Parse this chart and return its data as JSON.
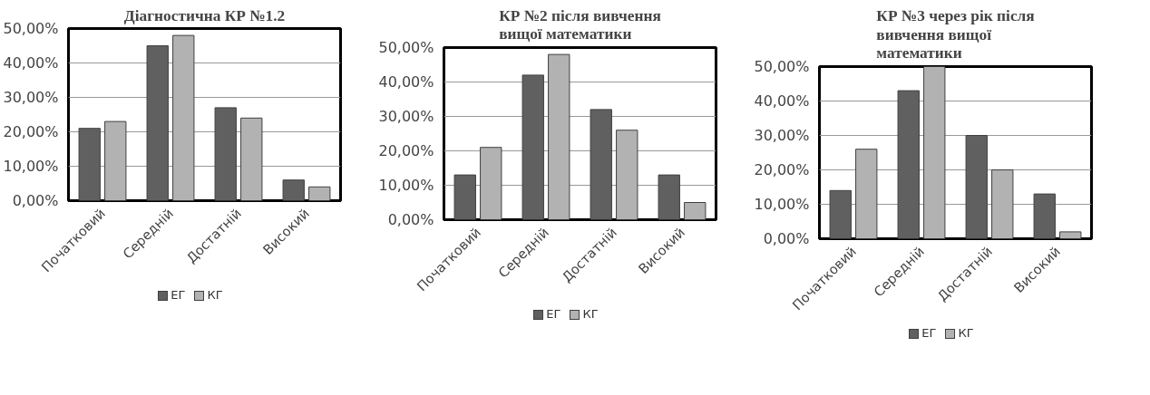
{
  "chart_data": [
    {
      "type": "bar",
      "title": "Діагностична КР №1.2",
      "categories": [
        "Початковий",
        "Середній",
        "Достатній",
        "Високий"
      ],
      "series": [
        {
          "name": "ЕГ",
          "color": "#606060",
          "values": [
            21,
            45,
            27,
            6
          ]
        },
        {
          "name": "КГ",
          "color": "#b2b2b2",
          "values": [
            23,
            48,
            24,
            4
          ]
        }
      ],
      "ylim": [
        0,
        50
      ],
      "yticks": [
        {
          "value": 0,
          "label": "0,00%"
        },
        {
          "value": 10,
          "label": "10,00%"
        },
        {
          "value": 20,
          "label": "20,00%"
        },
        {
          "value": 30,
          "label": "30,00%"
        },
        {
          "value": 40,
          "label": "40,00%"
        },
        {
          "value": 50,
          "label": "50,00%"
        }
      ],
      "grid": "y",
      "legend": "bottom"
    },
    {
      "type": "bar",
      "title": "КР №2 після вивчення вищої математики",
      "categories": [
        "Початковий",
        "Середній",
        "Достатній",
        "Високий"
      ],
      "series": [
        {
          "name": "ЕГ",
          "color": "#606060",
          "values": [
            13,
            42,
            32,
            13
          ]
        },
        {
          "name": "КГ",
          "color": "#b2b2b2",
          "values": [
            21,
            48,
            26,
            5
          ]
        }
      ],
      "ylim": [
        0,
        50
      ],
      "yticks": [
        {
          "value": 0,
          "label": "0,00%"
        },
        {
          "value": 10,
          "label": "10,00%"
        },
        {
          "value": 20,
          "label": "20,00%"
        },
        {
          "value": 30,
          "label": "30,00%"
        },
        {
          "value": 40,
          "label": "40,00%"
        },
        {
          "value": 50,
          "label": "50,00%"
        }
      ],
      "grid": "y",
      "legend": "bottom"
    },
    {
      "type": "bar",
      "title": "КР №3 через рік після вивчення вищої математики",
      "categories": [
        "Початковий",
        "Середній",
        "Достатній",
        "Високий"
      ],
      "series": [
        {
          "name": "ЕГ",
          "color": "#606060",
          "values": [
            14,
            43,
            30,
            13
          ]
        },
        {
          "name": "КГ",
          "color": "#b2b2b2",
          "values": [
            26,
            50,
            20,
            2
          ]
        }
      ],
      "ylim": [
        0,
        50
      ],
      "yticks": [
        {
          "value": 0,
          "label": "0,00%"
        },
        {
          "value": 10,
          "label": "10,00%"
        },
        {
          "value": 20,
          "label": "20,00%"
        },
        {
          "value": 30,
          "label": "30,00%"
        },
        {
          "value": 40,
          "label": "40,00%"
        },
        {
          "value": 50,
          "label": "50,00%"
        }
      ],
      "grid": "y",
      "legend": "bottom"
    }
  ]
}
